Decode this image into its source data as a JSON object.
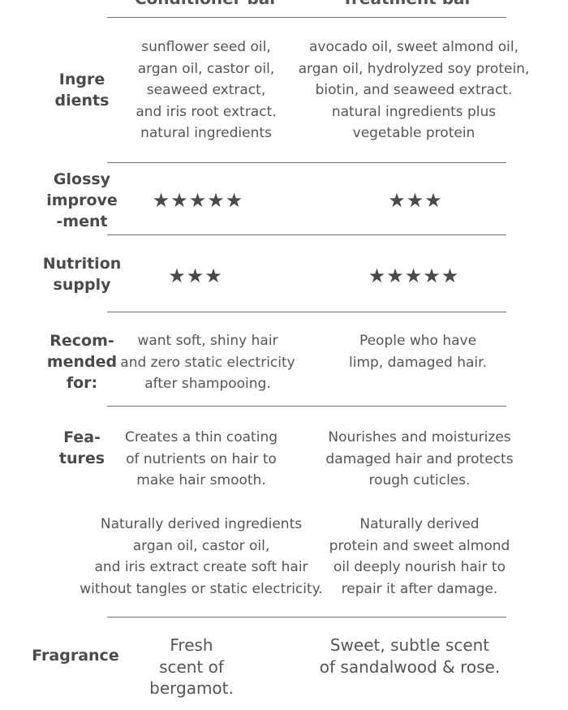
{
  "columns": {
    "left": "Conditioner bar",
    "right": "Treatment bar"
  },
  "rows": {
    "ingredients": {
      "label": [
        "Ingre",
        "dients"
      ],
      "left": [
        "sunflower seed oil,",
        "argan oil, castor oil,",
        "seaweed extract,",
        "and iris root extract.",
        "natural ingredients"
      ],
      "right": [
        "avocado oil, sweet almond oil,",
        "argan oil, hydrolyzed soy protein,",
        "biotin, and seaweed extract.",
        "natural ingredients plus",
        "vegetable protein"
      ]
    },
    "glossy": {
      "label": [
        "Glossy",
        "improve",
        "-ment"
      ],
      "left_stars": "★★★★★",
      "right_stars": "★★★",
      "left_rating": 5,
      "right_rating": 3
    },
    "nutrition": {
      "label": [
        "Nutrition",
        "supply"
      ],
      "left_stars": "★★★",
      "right_stars": "★★★★★",
      "left_rating": 3,
      "right_rating": 5
    },
    "recommended": {
      "label": [
        "Recom-",
        "mended",
        "for:"
      ],
      "left": [
        "want soft, shiny hair",
        "and zero static electricity",
        "after shampooing."
      ],
      "right": [
        "People who have",
        "limp, damaged hair."
      ]
    },
    "features": {
      "label": [
        "Fea-",
        "tures"
      ],
      "left": [
        "Creates a thin coating",
        "of nutrients on hair to",
        "make hair smooth."
      ],
      "right": [
        "Nourishes and moisturizes",
        "damaged hair and protects",
        "rough cuticles."
      ],
      "left_extra": [
        "Naturally derived ingredients",
        "argan oil, castor oil,",
        "and iris extract create soft hair",
        "without tangles or static electricity."
      ],
      "right_extra": [
        "Naturally derived",
        "protein and sweet almond",
        "oil deeply nourish hair to",
        "repair it after damage."
      ]
    },
    "fragrance": {
      "label": [
        "Fragrance"
      ],
      "left": [
        "Fresh",
        "scent of",
        "bergamot."
      ],
      "right": [
        "Sweet, subtle scent",
        "of sandalwood & rose."
      ]
    }
  }
}
